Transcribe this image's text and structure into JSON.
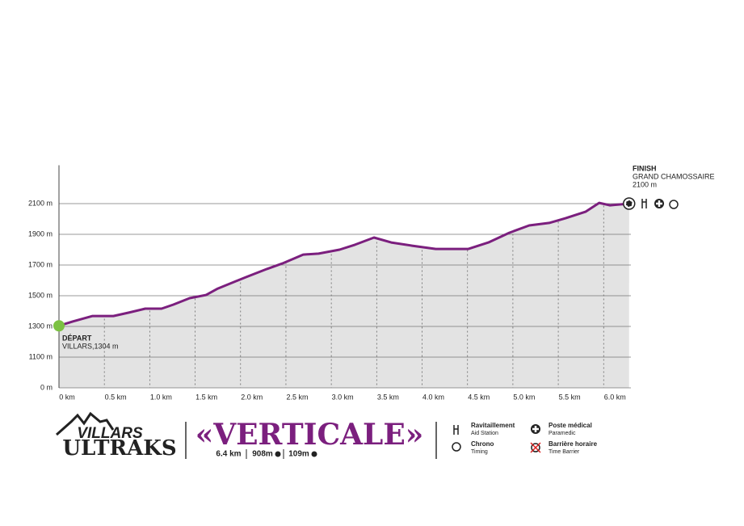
{
  "chart_data": {
    "type": "area",
    "x": [
      0,
      0.15,
      0.37,
      0.6,
      0.77,
      0.95,
      1.13,
      1.26,
      1.44,
      1.62,
      1.75,
      1.93,
      2.06,
      2.29,
      2.46,
      2.69,
      2.86,
      3.09,
      3.26,
      3.47,
      3.66,
      3.89,
      4.15,
      4.51,
      4.73,
      4.96,
      5.18,
      5.4,
      5.58,
      5.8,
      5.95,
      6.07,
      6.28
    ],
    "values": [
      1304,
      1332,
      1368,
      1368,
      1390,
      1416,
      1416,
      1442,
      1484,
      1505,
      1547,
      1590,
      1621,
      1674,
      1710,
      1768,
      1774,
      1800,
      1832,
      1879,
      1847,
      1826,
      1805,
      1805,
      1847,
      1910,
      1958,
      1974,
      2005,
      2047,
      2105,
      2089,
      2100
    ],
    "color": "#7b1f7e",
    "fill": "#e3e3e3",
    "xlim": [
      0,
      6.3
    ],
    "xticks": [
      {
        "value": 0,
        "label": "0 km"
      },
      {
        "value": 0.5,
        "label": "0.5 km"
      },
      {
        "value": 1.0,
        "label": "1.0 km"
      },
      {
        "value": 1.5,
        "label": "1.5 km"
      },
      {
        "value": 2.0,
        "label": "2.0 km"
      },
      {
        "value": 2.5,
        "label": "2.5 km"
      },
      {
        "value": 3.0,
        "label": "3.0 km"
      },
      {
        "value": 3.5,
        "label": "3.5 km"
      },
      {
        "value": 4.0,
        "label": "4.0 km"
      },
      {
        "value": 4.5,
        "label": "4.5 km"
      },
      {
        "value": 5.0,
        "label": "5.0 km"
      },
      {
        "value": 5.5,
        "label": "5.5 km"
      },
      {
        "value": 6.0,
        "label": "6.0 km"
      }
    ],
    "ylim": [
      0,
      2350
    ],
    "yticks": [
      {
        "value": 0,
        "label": "0 m"
      },
      {
        "value": 1100,
        "label": "1100 m"
      },
      {
        "value": 1300,
        "label": "1300 m"
      },
      {
        "value": 1500,
        "label": "1500 m"
      },
      {
        "value": 1700,
        "label": "1700 m"
      },
      {
        "value": 1900,
        "label": "1900 m"
      },
      {
        "value": 2100,
        "label": "2100 m"
      }
    ],
    "grid": true,
    "start": {
      "title": "DÉPART",
      "label": "VILLARS,1304 m"
    },
    "finish": {
      "title": "FINISH",
      "label": "GRAND CHAMOSSAIRE",
      "elevation": "2100 m"
    }
  },
  "footer": {
    "logo": [
      "VILLARS",
      "ULTRAKS"
    ],
    "race": "«VERTICALE»",
    "stats": [
      "6.4 km",
      "908m",
      "109m"
    ],
    "legend": [
      {
        "title": "Ravitaillement",
        "label": "Aid Station"
      },
      {
        "title": "Poste médical",
        "label": "Paramedic"
      },
      {
        "title": "Chrono",
        "label": "Timing"
      },
      {
        "title": "Barrière horaire",
        "label": "Time Barrier"
      }
    ]
  }
}
